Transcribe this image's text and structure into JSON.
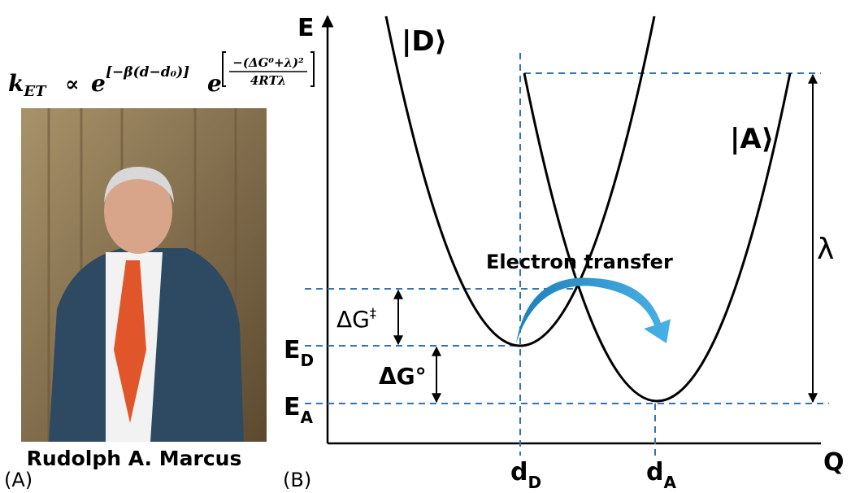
{
  "panel_a": {
    "formula": {
      "k": "k",
      "k_sub": "ET",
      "relation": "∝",
      "e1": "e",
      "exp1": "[−β(d−d₀)]",
      "e2": "e",
      "exp2_numerator": "−(ΔG⁰+λ)²",
      "exp2_denominator": "4RTλ"
    },
    "caption": "Rudolph A. Marcus",
    "label": "(A)"
  },
  "panel_b": {
    "label": "(B)",
    "y_axis": "E",
    "x_axis": "Q",
    "donor_state": "|D⟩",
    "acceptor_state": "|A⟩",
    "reorganization": "λ",
    "process": "Electron transfer",
    "activation": {
      "base": "ΔG",
      "sup": "‡"
    },
    "driving_force": "ΔG°",
    "e_d": {
      "base": "E",
      "sub": "D"
    },
    "e_a": {
      "base": "E",
      "sub": "A"
    },
    "d_d": {
      "base": "d",
      "sub": "D"
    },
    "d_a": {
      "base": "d",
      "sub": "A"
    }
  }
}
